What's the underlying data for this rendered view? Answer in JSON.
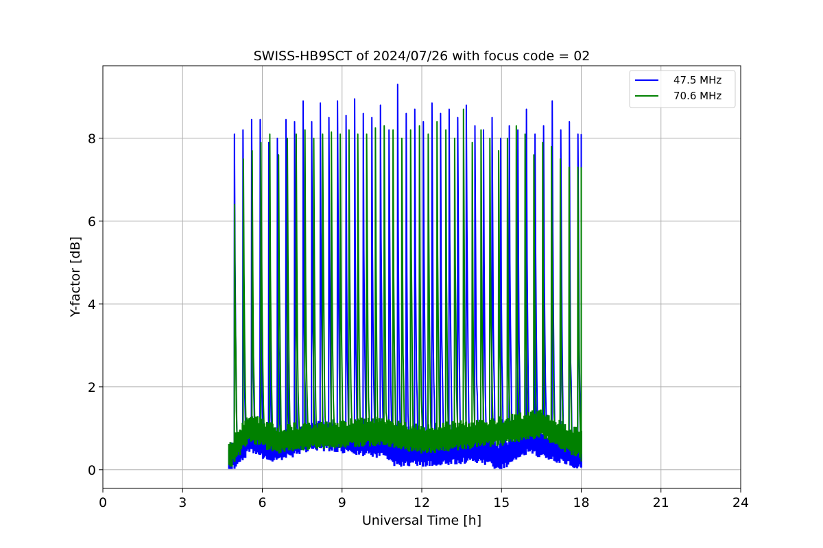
{
  "chart_data": {
    "type": "line",
    "title": "SWISS-HB9SCT of 2024/07/26 with focus code = 02",
    "xlabel": "Universal Time [h]",
    "ylabel": "Y-factor [dB]",
    "xlim": [
      0,
      24
    ],
    "ylim": [
      -0.45,
      9.75
    ],
    "xticks": [
      "0",
      "3",
      "6",
      "9",
      "12",
      "15",
      "18",
      "21",
      "24"
    ],
    "yticks": [
      "0",
      "2",
      "4",
      "6",
      "8"
    ],
    "grid": true,
    "legend_position": "top-right",
    "series": [
      {
        "name": "47.5 MHz",
        "color": "#0000ff",
        "x_range": [
          4.75,
          18.0
        ],
        "baseline": [
          [
            4.75,
            0.2
          ],
          [
            5.5,
            0.7
          ],
          [
            6.5,
            0.5
          ],
          [
            8.0,
            0.8
          ],
          [
            10.5,
            0.6
          ],
          [
            11.0,
            0.4
          ],
          [
            12.5,
            0.4
          ],
          [
            14.0,
            0.5
          ],
          [
            15.0,
            0.3
          ],
          [
            16.0,
            0.7
          ],
          [
            17.0,
            0.5
          ],
          [
            18.0,
            0.3
          ]
        ],
        "peaks": [
          8.1,
          8.2,
          8.45,
          8.45,
          7.9,
          8.0,
          8.45,
          8.4,
          8.9,
          8.4,
          8.85,
          8.5,
          8.9,
          8.55,
          8.95,
          8.6,
          8.5,
          8.8,
          8.2,
          9.3,
          8.6,
          8.7,
          8.4,
          8.85,
          8.6,
          8.7,
          8.5,
          8.8,
          8.3,
          8.2,
          8.5,
          8.0,
          8.3,
          8.2,
          8.7,
          8.1,
          8.3,
          8.9,
          8.2,
          8.4,
          8.1
        ]
      },
      {
        "name": "70.6 MHz",
        "color": "#008000",
        "x_range": [
          4.75,
          18.0
        ],
        "baseline": [
          [
            4.75,
            0.3
          ],
          [
            5.5,
            1.0
          ],
          [
            6.5,
            0.7
          ],
          [
            8.0,
            0.8
          ],
          [
            10.5,
            0.9
          ],
          [
            12.0,
            0.7
          ],
          [
            13.5,
            0.8
          ],
          [
            15.0,
            0.9
          ],
          [
            16.5,
            1.1
          ],
          [
            17.5,
            0.7
          ],
          [
            18.0,
            0.6
          ]
        ],
        "peaks": [
          6.4,
          7.5,
          7.7,
          7.9,
          8.1,
          7.6,
          8.0,
          8.1,
          8.2,
          8.0,
          8.1,
          8.15,
          8.1,
          8.2,
          8.1,
          8.1,
          8.25,
          8.3,
          8.2,
          8.0,
          8.2,
          8.3,
          8.1,
          8.4,
          8.2,
          8.0,
          8.7,
          7.9,
          8.2,
          8.0,
          7.7,
          8.0,
          8.3,
          8.1,
          7.6,
          7.9,
          7.8,
          7.5,
          7.3,
          7.3
        ]
      }
    ]
  }
}
